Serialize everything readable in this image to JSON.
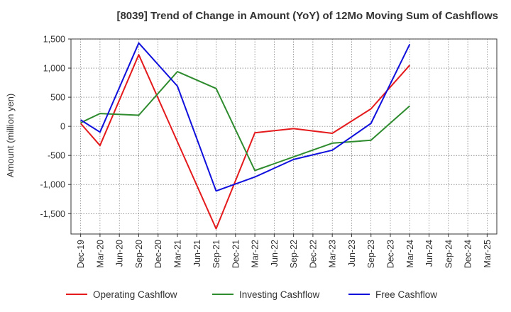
{
  "chart_data": {
    "type": "line",
    "title": "[8039]  Trend of Change in Amount (YoY) of 12Mo Moving Sum of Cashflows",
    "xlabel": "",
    "ylabel": "Amount (million yen)",
    "ylim": [
      -1850,
      1500
    ],
    "yticks": [
      1500,
      1000,
      500,
      0,
      -500,
      -1000,
      -1500
    ],
    "ytick_labels": [
      "1,500",
      "1,000",
      "500",
      "0",
      "-500",
      "-1,000",
      "-1,500"
    ],
    "grid": true,
    "legend_position": "bottom",
    "categories": [
      "Dec-19",
      "Mar-20",
      "Jun-20",
      "Sep-20",
      "Dec-20",
      "Mar-21",
      "Jun-21",
      "Sep-21",
      "Dec-21",
      "Mar-22",
      "Jun-22",
      "Sep-22",
      "Dec-22",
      "Mar-23",
      "Jun-23",
      "Sep-23",
      "Dec-23",
      "Mar-24",
      "Jun-24",
      "Sep-24",
      "Dec-24",
      "Mar-25"
    ],
    "series": [
      {
        "name": "Operating Cashflow",
        "color": "#e41a1c",
        "values": [
          50,
          -330,
          null,
          1230,
          null,
          null,
          null,
          -1760,
          null,
          -110,
          null,
          -40,
          null,
          -120,
          null,
          300,
          null,
          1050,
          null,
          null,
          null,
          null
        ]
      },
      {
        "name": "Investing Cashflow",
        "color": "#2e8b2e",
        "values": [
          60,
          220,
          null,
          190,
          null,
          940,
          null,
          650,
          null,
          -760,
          null,
          null,
          null,
          -290,
          null,
          -240,
          null,
          350,
          null,
          null,
          null,
          null
        ]
      },
      {
        "name": "Free Cashflow",
        "color": "#1010dd",
        "values": [
          110,
          -100,
          null,
          1430,
          null,
          690,
          null,
          -1110,
          null,
          -870,
          null,
          -570,
          null,
          -410,
          null,
          50,
          null,
          1410,
          null,
          null,
          null,
          null
        ]
      }
    ]
  }
}
